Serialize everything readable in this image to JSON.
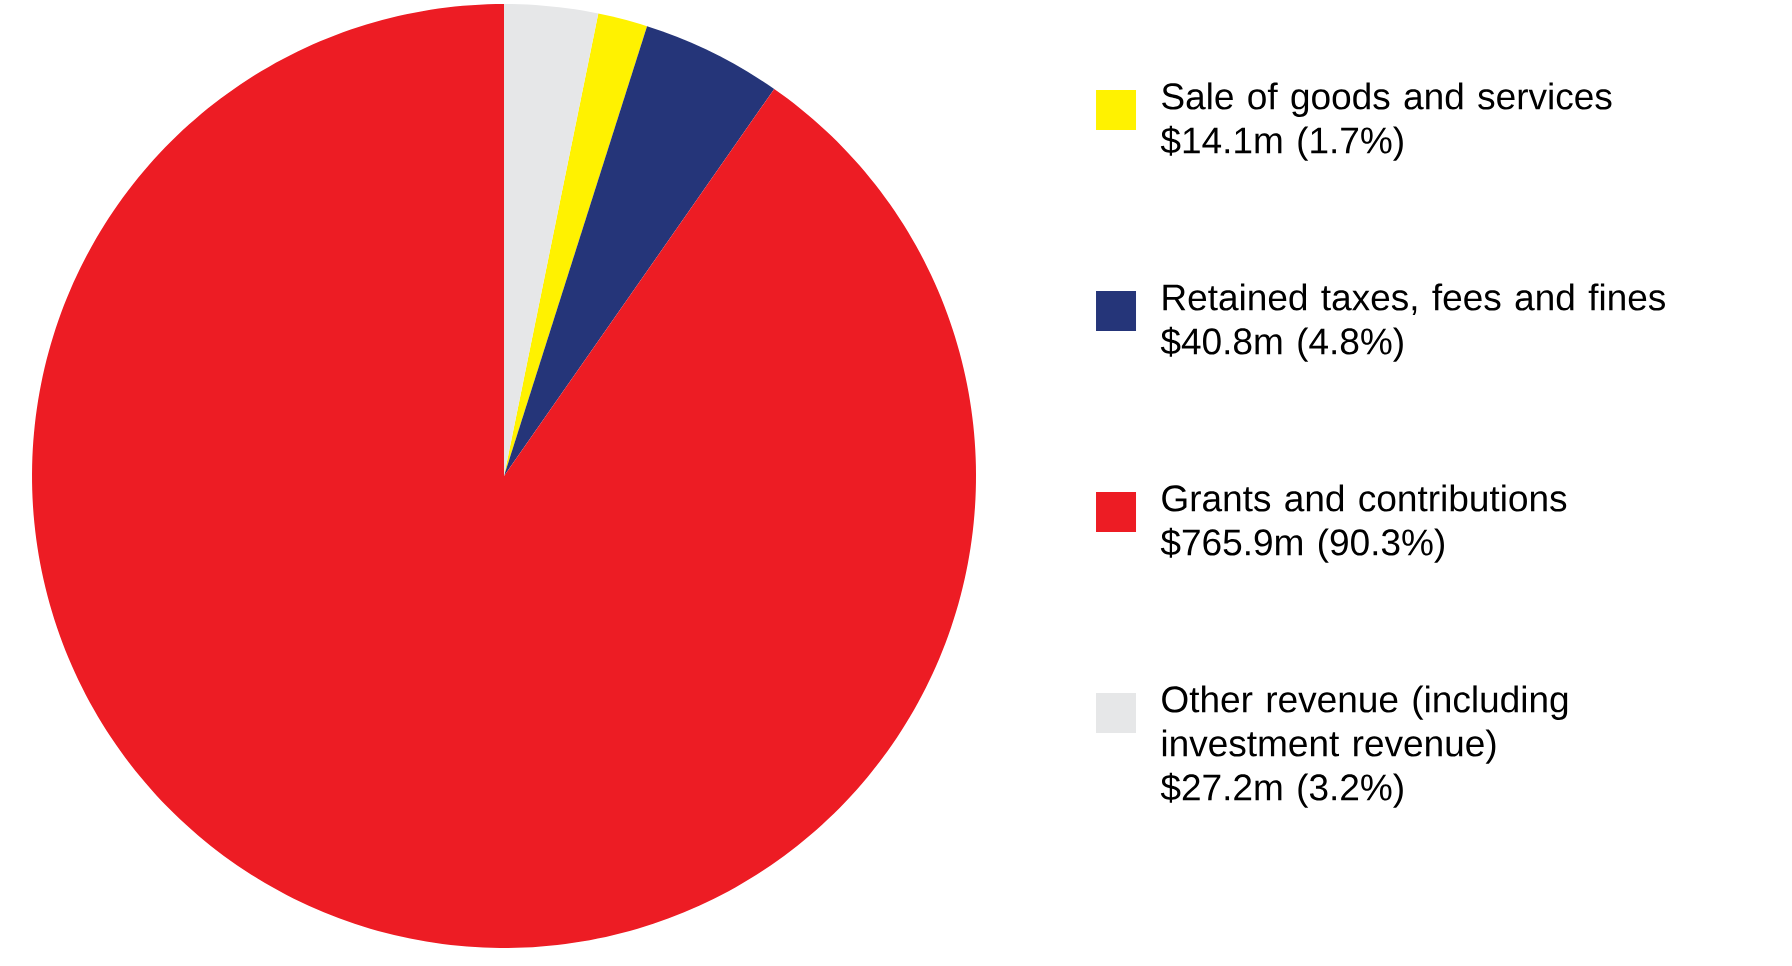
{
  "chart_data": {
    "type": "pie",
    "categories": [
      "Sale of goods and services",
      "Retained taxes, fees and fines",
      "Grants and contributions",
      "Other revenue (including investment revenue)"
    ],
    "values": [
      1.7,
      4.8,
      90.3,
      3.2
    ],
    "value_labels": [
      "$14.1m (1.7%)",
      "$40.8m (4.8%)",
      "$765.9m (90.3%)",
      "$27.2m (3.2%)"
    ],
    "colors": [
      "#fff200",
      "#253579",
      "#ed1c24",
      "#e6e7e8"
    ],
    "legend": "right"
  }
}
